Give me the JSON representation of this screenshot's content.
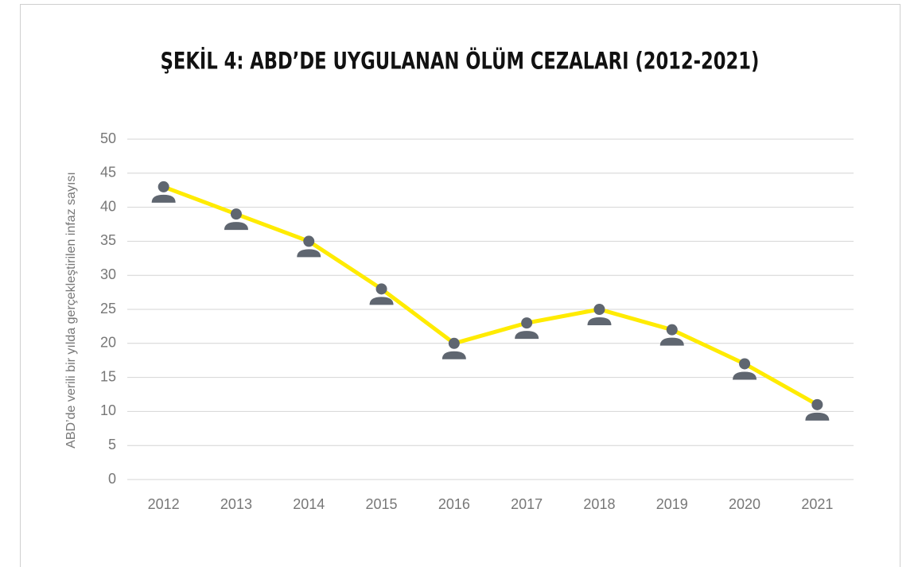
{
  "chart_data": {
    "type": "line",
    "title": "ŞEKİL 4: ABD’DE UYGULANAN ÖLÜM CEZALARI (2012-2021)",
    "y_label": "ABD’de verili bir yılda gerçekleştirilen infaz sayısı",
    "categories": [
      "2012",
      "2013",
      "2014",
      "2015",
      "2016",
      "2017",
      "2018",
      "2019",
      "2020",
      "2021"
    ],
    "values": [
      43,
      39,
      35,
      28,
      20,
      23,
      25,
      22,
      17,
      11
    ],
    "color": "#ffeb00",
    "marker_color": "#5f6670",
    "ylim": [
      0,
      50
    ],
    "yticks": [
      0,
      5,
      10,
      15,
      20,
      25,
      30,
      35,
      40,
      45,
      50
    ],
    "grid": true
  }
}
